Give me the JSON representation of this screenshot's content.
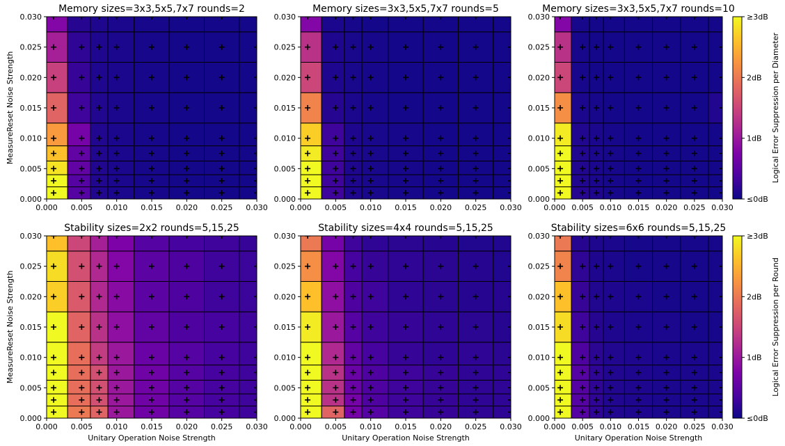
{
  "chart_data": [
    {
      "type": "heatmap",
      "title": "Memory sizes=3x3,5x5,7x7 rounds=2",
      "xlabel": "",
      "ylabel": "MeasureReset Noise Strength",
      "x": [
        0.001,
        0.005,
        0.0075,
        0.01,
        0.015,
        0.02,
        0.025,
        0.03
      ],
      "y": [
        0.001,
        0.003,
        0.005,
        0.0075,
        0.01,
        0.015,
        0.02,
        0.025,
        0.03
      ],
      "xlim": [
        0,
        0.03
      ],
      "ylim": [
        0,
        0.03
      ],
      "xticks": [
        "0.000",
        "0.005",
        "0.010",
        "0.015",
        "0.020",
        "0.025",
        "0.030"
      ],
      "yticks": [
        "0.000",
        "0.005",
        "0.010",
        "0.015",
        "0.020",
        "0.025",
        "0.030"
      ],
      "values": [
        [
          3.0,
          0.45,
          0.12,
          0.08,
          0.06,
          0.05,
          0.05,
          0.05
        ],
        [
          3.0,
          0.45,
          0.12,
          0.08,
          0.06,
          0.05,
          0.05,
          0.05
        ],
        [
          2.85,
          0.55,
          0.12,
          0.08,
          0.06,
          0.05,
          0.05,
          0.05
        ],
        [
          2.6,
          0.55,
          0.12,
          0.08,
          0.06,
          0.05,
          0.05,
          0.05
        ],
        [
          2.3,
          0.7,
          0.12,
          0.08,
          0.06,
          0.05,
          0.05,
          0.05
        ],
        [
          1.8,
          0.3,
          0.12,
          0.08,
          0.06,
          0.05,
          0.05,
          0.05
        ],
        [
          1.45,
          0.25,
          0.1,
          0.08,
          0.06,
          0.05,
          0.05,
          0.05
        ],
        [
          1.1,
          0.2,
          0.1,
          0.08,
          0.06,
          0.05,
          0.05,
          0.05
        ],
        [
          0.8,
          0.15,
          0.1,
          0.08,
          0.06,
          0.05,
          0.05,
          0.05
        ]
      ]
    },
    {
      "type": "heatmap",
      "title": "Memory sizes=3x3,5x5,7x7 rounds=5",
      "xlabel": "",
      "ylabel": "",
      "x": [
        0.001,
        0.005,
        0.0075,
        0.01,
        0.015,
        0.02,
        0.025,
        0.03
      ],
      "y": [
        0.001,
        0.003,
        0.005,
        0.0075,
        0.01,
        0.015,
        0.02,
        0.025,
        0.03
      ],
      "xlim": [
        0,
        0.03
      ],
      "ylim": [
        0,
        0.03
      ],
      "xticks": [
        "0.000",
        "0.005",
        "0.010",
        "0.015",
        "0.020",
        "0.025",
        "0.030"
      ],
      "yticks": [
        "0.000",
        "0.005",
        "0.010",
        "0.015",
        "0.020",
        "0.025",
        "0.030"
      ],
      "values": [
        [
          3.0,
          0.3,
          0.1,
          0.07,
          0.06,
          0.05,
          0.05,
          0.05
        ],
        [
          3.0,
          0.3,
          0.1,
          0.07,
          0.06,
          0.05,
          0.05,
          0.05
        ],
        [
          3.0,
          0.3,
          0.1,
          0.07,
          0.06,
          0.05,
          0.05,
          0.05
        ],
        [
          2.9,
          0.3,
          0.1,
          0.07,
          0.06,
          0.05,
          0.05,
          0.05
        ],
        [
          2.7,
          0.3,
          0.1,
          0.07,
          0.06,
          0.05,
          0.05,
          0.05
        ],
        [
          2.1,
          0.15,
          0.08,
          0.06,
          0.05,
          0.05,
          0.05,
          0.05
        ],
        [
          1.5,
          0.1,
          0.07,
          0.06,
          0.05,
          0.05,
          0.05,
          0.05
        ],
        [
          1.3,
          0.1,
          0.07,
          0.06,
          0.05,
          0.05,
          0.05,
          0.05
        ],
        [
          0.8,
          0.08,
          0.06,
          0.05,
          0.05,
          0.05,
          0.05,
          0.05
        ]
      ]
    },
    {
      "type": "heatmap",
      "title": "Memory sizes=3x3,5x5,7x7 rounds=10",
      "xlabel": "",
      "ylabel": "",
      "x": [
        0.001,
        0.005,
        0.0075,
        0.01,
        0.015,
        0.02,
        0.025,
        0.03
      ],
      "y": [
        0.001,
        0.003,
        0.005,
        0.0075,
        0.01,
        0.015,
        0.02,
        0.025,
        0.03
      ],
      "xlim": [
        0,
        0.03
      ],
      "ylim": [
        0,
        0.03
      ],
      "xticks": [
        "0.000",
        "0.005",
        "0.010",
        "0.015",
        "0.020",
        "0.025",
        "0.030"
      ],
      "yticks": [
        "0.000",
        "0.005",
        "0.010",
        "0.015",
        "0.020",
        "0.025",
        "0.030"
      ],
      "values": [
        [
          3.0,
          0.15,
          0.1,
          0.06,
          0.05,
          0.05,
          0.05,
          0.05
        ],
        [
          3.0,
          0.12,
          0.08,
          0.06,
          0.05,
          0.05,
          0.05,
          0.05
        ],
        [
          3.0,
          0.12,
          0.08,
          0.06,
          0.05,
          0.05,
          0.05,
          0.05
        ],
        [
          3.0,
          0.12,
          0.08,
          0.06,
          0.05,
          0.05,
          0.05,
          0.05
        ],
        [
          2.9,
          0.12,
          0.08,
          0.06,
          0.05,
          0.05,
          0.05,
          0.05
        ],
        [
          2.2,
          0.08,
          0.06,
          0.05,
          0.05,
          0.05,
          0.05,
          0.12
        ],
        [
          1.5,
          0.06,
          0.05,
          0.05,
          0.05,
          0.05,
          0.05,
          0.05
        ],
        [
          1.3,
          0.06,
          0.05,
          0.05,
          0.05,
          0.05,
          0.05,
          0.05
        ],
        [
          0.8,
          0.06,
          0.05,
          0.05,
          0.05,
          0.05,
          0.05,
          0.05
        ]
      ]
    },
    {
      "type": "heatmap",
      "title": "Stability sizes=2x2 rounds=5,15,25",
      "xlabel": "Unitary Operation Noise Strength",
      "ylabel": "MeasureReset Noise Strength",
      "x": [
        0.001,
        0.005,
        0.0075,
        0.01,
        0.015,
        0.02,
        0.025,
        0.03
      ],
      "y": [
        0.001,
        0.003,
        0.005,
        0.0075,
        0.01,
        0.015,
        0.02,
        0.025,
        0.03
      ],
      "xlim": [
        0,
        0.03
      ],
      "ylim": [
        0,
        0.03
      ],
      "xticks": [
        "0.000",
        "0.005",
        "0.010",
        "0.015",
        "0.020",
        "0.025",
        "0.030"
      ],
      "yticks": [
        "0.000",
        "0.005",
        "0.010",
        "0.015",
        "0.020",
        "0.025",
        "0.030"
      ],
      "values": [
        [
          3.0,
          2.0,
          1.8,
          1.0,
          0.65,
          0.45,
          0.35,
          0.3
        ],
        [
          3.0,
          1.9,
          1.6,
          1.0,
          0.65,
          0.45,
          0.35,
          0.3
        ],
        [
          3.0,
          1.9,
          1.6,
          1.0,
          0.65,
          0.45,
          0.35,
          0.3
        ],
        [
          3.0,
          1.9,
          1.6,
          1.0,
          0.65,
          0.45,
          0.35,
          0.3
        ],
        [
          3.0,
          1.9,
          1.4,
          1.0,
          0.6,
          0.45,
          0.35,
          0.3
        ],
        [
          3.0,
          1.8,
          1.3,
          0.9,
          0.55,
          0.4,
          0.35,
          0.3
        ],
        [
          2.7,
          1.7,
          1.2,
          0.85,
          0.5,
          0.4,
          0.3,
          0.28
        ],
        [
          2.8,
          1.6,
          1.2,
          0.8,
          0.5,
          0.4,
          0.3,
          0.28
        ],
        [
          2.6,
          1.5,
          1.1,
          0.75,
          0.45,
          0.35,
          0.3,
          0.25
        ]
      ]
    },
    {
      "type": "heatmap",
      "title": "Stability sizes=4x4 rounds=5,15,25",
      "xlabel": "Unitary Operation Noise Strength",
      "ylabel": "",
      "x": [
        0.001,
        0.005,
        0.0075,
        0.01,
        0.015,
        0.02,
        0.025,
        0.03
      ],
      "y": [
        0.001,
        0.003,
        0.005,
        0.0075,
        0.01,
        0.015,
        0.02,
        0.025,
        0.03
      ],
      "xlim": [
        0,
        0.03
      ],
      "ylim": [
        0,
        0.03
      ],
      "xticks": [
        "0.000",
        "0.005",
        "0.010",
        "0.015",
        "0.020",
        "0.025",
        "0.030"
      ],
      "yticks": [
        "0.000",
        "0.005",
        "0.010",
        "0.015",
        "0.020",
        "0.025",
        "0.030"
      ],
      "values": [
        [
          3.0,
          1.8,
          0.7,
          0.45,
          0.3,
          0.25,
          0.2,
          0.2
        ],
        [
          3.0,
          1.3,
          0.7,
          0.4,
          0.3,
          0.25,
          0.2,
          0.2
        ],
        [
          3.0,
          1.3,
          0.6,
          0.4,
          0.3,
          0.25,
          0.2,
          0.2
        ],
        [
          3.0,
          1.3,
          0.6,
          0.4,
          0.3,
          0.25,
          0.2,
          0.2
        ],
        [
          3.0,
          1.2,
          0.55,
          0.35,
          0.25,
          0.2,
          0.2,
          0.18
        ],
        [
          2.9,
          1.0,
          0.45,
          0.3,
          0.25,
          0.2,
          0.18,
          0.15
        ],
        [
          2.6,
          0.9,
          0.4,
          0.3,
          0.2,
          0.18,
          0.15,
          0.15
        ],
        [
          2.2,
          0.8,
          0.35,
          0.25,
          0.2,
          0.18,
          0.15,
          0.12
        ],
        [
          2.0,
          0.7,
          0.3,
          0.2,
          0.18,
          0.15,
          0.12,
          0.12
        ]
      ]
    },
    {
      "type": "heatmap",
      "title": "Stability sizes=6x6 rounds=5,15,25",
      "xlabel": "Unitary Operation Noise Strength",
      "ylabel": "",
      "x": [
        0.001,
        0.005,
        0.0075,
        0.01,
        0.015,
        0.02,
        0.025,
        0.03
      ],
      "y": [
        0.001,
        0.003,
        0.005,
        0.0075,
        0.01,
        0.015,
        0.02,
        0.025,
        0.03
      ],
      "xlim": [
        0,
        0.03
      ],
      "ylim": [
        0,
        0.03
      ],
      "xticks": [
        "0.000",
        "0.005",
        "0.010",
        "0.015",
        "0.020",
        "0.025",
        "0.030"
      ],
      "yticks": [
        "0.000",
        "0.005",
        "0.010",
        "0.015",
        "0.020",
        "0.025",
        "0.030"
      ],
      "values": [
        [
          3.0,
          0.45,
          0.2,
          0.12,
          0.1,
          0.08,
          0.08,
          0.08
        ],
        [
          3.0,
          0.45,
          0.2,
          0.12,
          0.1,
          0.08,
          0.08,
          0.08
        ],
        [
          3.0,
          0.45,
          0.2,
          0.12,
          0.1,
          0.08,
          0.08,
          0.08
        ],
        [
          3.0,
          0.45,
          0.2,
          0.12,
          0.1,
          0.08,
          0.08,
          0.08
        ],
        [
          3.0,
          0.4,
          0.18,
          0.12,
          0.1,
          0.08,
          0.08,
          0.08
        ],
        [
          2.8,
          0.3,
          0.15,
          0.1,
          0.08,
          0.08,
          0.06,
          0.06
        ],
        [
          2.6,
          0.25,
          0.12,
          0.1,
          0.08,
          0.06,
          0.06,
          0.06
        ],
        [
          2.1,
          0.2,
          0.1,
          0.08,
          0.06,
          0.06,
          0.06,
          0.06
        ],
        [
          2.0,
          0.15,
          0.1,
          0.08,
          0.06,
          0.06,
          0.06,
          0.06
        ]
      ]
    }
  ],
  "colorbars": [
    {
      "label": "Logical Error Suppression per Diameter",
      "ticks": [
        "≥3dB",
        "2dB",
        "1dB",
        "≤0dB"
      ],
      "range": [
        0,
        3
      ]
    },
    {
      "label": "Logical Error Suppression per Round",
      "ticks": [
        "≥3dB",
        "2dB",
        "1dB",
        "≤0dB"
      ],
      "range": [
        0,
        3
      ]
    }
  ],
  "colormap": "plasma"
}
